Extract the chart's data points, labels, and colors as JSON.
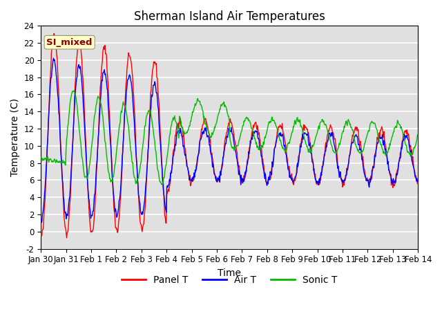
{
  "title": "Sherman Island Air Temperatures",
  "xlabel": "Time",
  "ylabel": "Temperature (C)",
  "ylim": [
    -2,
    24
  ],
  "tick_labels": [
    "Jan 30",
    "Jan 31",
    "Feb 1",
    "Feb 2",
    "Feb 3",
    "Feb 4",
    "Feb 5",
    "Feb 6",
    "Feb 7",
    "Feb 8",
    "Feb 9",
    "Feb 10",
    "Feb 11",
    "Feb 12",
    "Feb 13",
    "Feb 14"
  ],
  "legend_labels": [
    "Panel T",
    "Air T",
    "Sonic T"
  ],
  "colors": {
    "panel": "#ff0000",
    "air": "#0000ff",
    "sonic": "#00bb00"
  },
  "line_width": 1.0,
  "annotation_text": "SI_mixed",
  "annotation_color": "#8b0000",
  "annotation_bg": "#ffffcc",
  "bg_color": "#e0e0e0",
  "title_fontsize": 12,
  "axis_fontsize": 10,
  "tick_fontsize": 8.5
}
